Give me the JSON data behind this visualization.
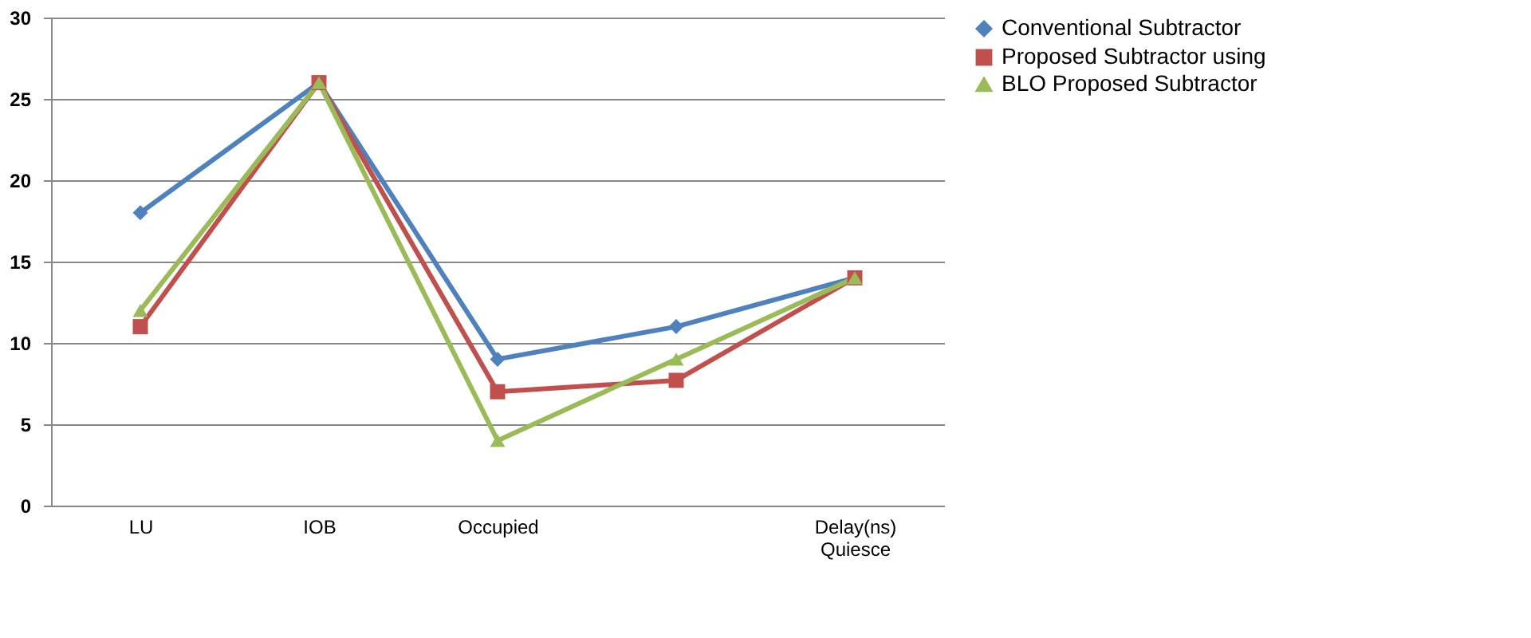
{
  "chart_data": {
    "type": "line",
    "categories": [
      "LU",
      "IOB",
      "Occupied",
      null,
      "Delay(ns)\nQuiesce"
    ],
    "series": [
      {
        "name": "Conventional Subtractor",
        "color": "#4f81bd",
        "marker": "diamond",
        "values": [
          18,
          26,
          9,
          11,
          14
        ]
      },
      {
        "name": "Proposed Subtractor using",
        "color": "#c0504d",
        "marker": "square",
        "values": [
          11,
          26,
          7,
          7.7,
          14
        ]
      },
      {
        "name": "BLO Proposed  Subtractor",
        "color": "#9bbb59",
        "marker": "triangle",
        "values": [
          12,
          26,
          4,
          9,
          14
        ]
      }
    ],
    "ylim": [
      0,
      30
    ],
    "yticks": [
      0,
      5,
      10,
      15,
      20,
      25,
      30
    ],
    "grid": "y",
    "legend": "right",
    "line_style": "solid"
  }
}
